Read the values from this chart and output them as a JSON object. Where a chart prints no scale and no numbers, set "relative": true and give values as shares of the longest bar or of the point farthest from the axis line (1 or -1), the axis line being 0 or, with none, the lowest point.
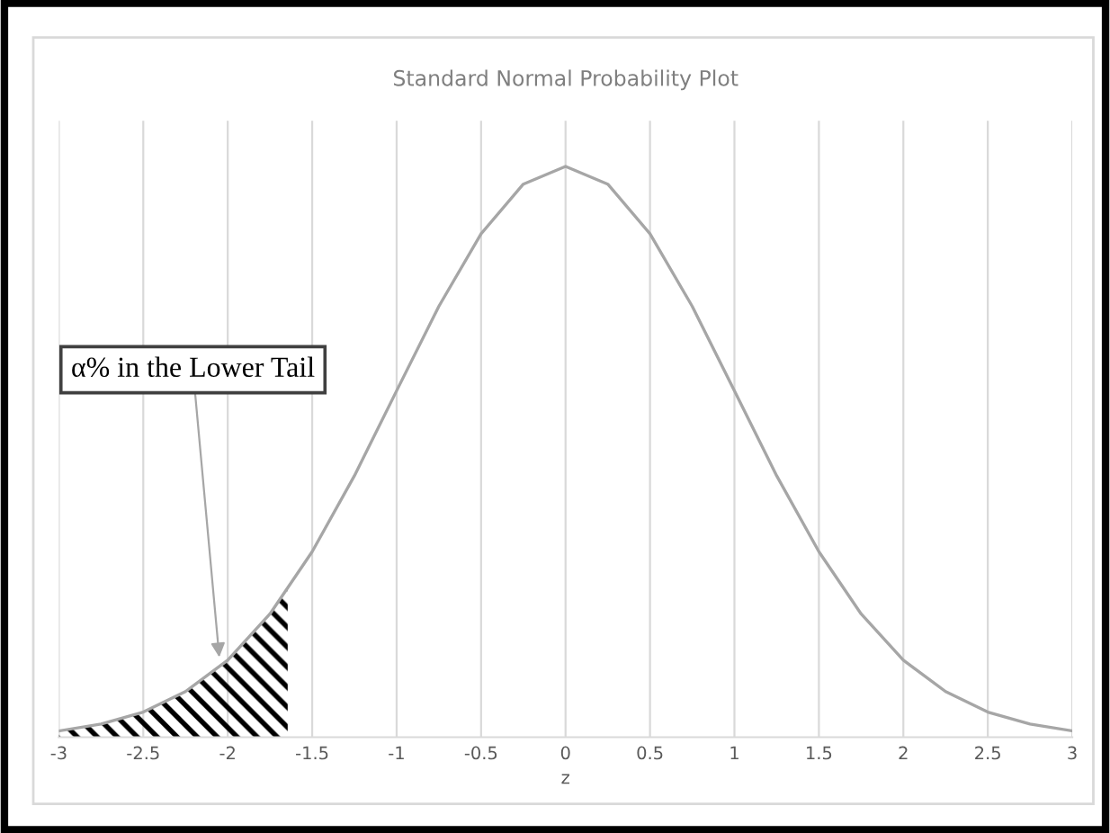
{
  "chart_data": {
    "type": "line",
    "title": "Standard Normal Probability Plot",
    "xlabel": "z",
    "relative": true,
    "x": [
      -3,
      -2.75,
      -2.5,
      -2.25,
      -2,
      -1.75,
      -1.5,
      -1.25,
      -1,
      -0.75,
      -0.5,
      -0.25,
      0,
      0.25,
      0.5,
      0.75,
      1,
      1.25,
      1.5,
      1.75,
      2,
      2.25,
      2.5,
      2.75,
      3
    ],
    "series": [
      {
        "color": "#a6a6a6",
        "values": [
          0.011,
          0.023,
          0.044,
          0.08,
          0.135,
          0.216,
          0.325,
          0.458,
          0.607,
          0.755,
          0.882,
          0.969,
          1,
          0.969,
          0.882,
          0.755,
          0.607,
          0.458,
          0.325,
          0.216,
          0.135,
          0.08,
          0.044,
          0.023,
          0.011
        ]
      },
      {
        "type": "area",
        "color": "#000000",
        "x": [
          -3,
          -2.75,
          -2.5,
          -2.25,
          -2,
          -1.75,
          -1.645
        ],
        "values": [
          0.011,
          0.023,
          0.044,
          0.08,
          0.135,
          0.216,
          0.258
        ]
      }
    ],
    "xlim": [
      -3,
      3
    ],
    "xticks": [
      -3,
      -2.5,
      -2,
      -1.5,
      -1,
      -0.5,
      0,
      0.5,
      1,
      1.5,
      2,
      2.5,
      3
    ],
    "grid": "x",
    "annotations": [
      {
        "text": "α% in the Lower Tail",
        "x": -2.05,
        "y": 0.14
      }
    ]
  }
}
